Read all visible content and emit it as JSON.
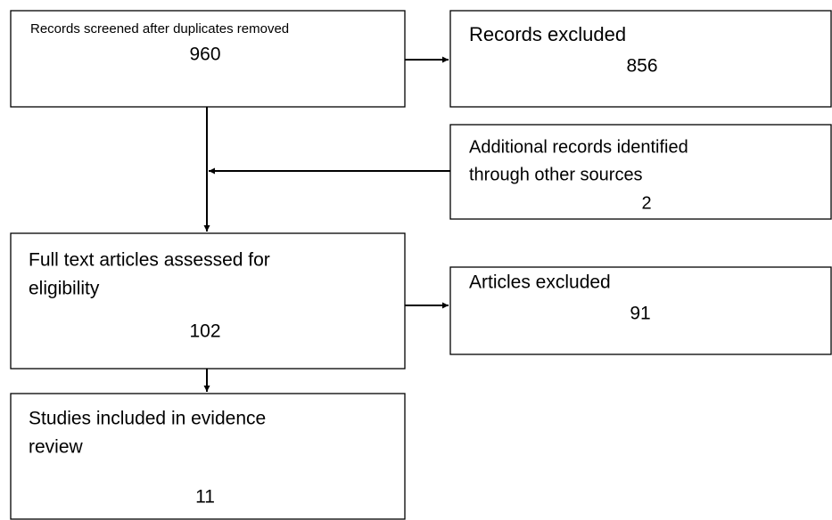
{
  "nodes": [
    {
      "label_lines": [
        "Records screened after duplicates removed"
      ],
      "count": 960
    },
    {
      "label_lines": [
        "Records excluded"
      ],
      "count": 856
    },
    {
      "label_lines": [
        "Additional records identified",
        "through other sources"
      ],
      "count": 2
    },
    {
      "label_lines": [
        "Full text articles assessed for",
        "eligibility"
      ],
      "count": 102
    },
    {
      "label_lines": [
        "Articles excluded"
      ],
      "count": 91
    },
    {
      "label_lines": [
        "Studies included in evidence",
        "review"
      ],
      "count": 11
    }
  ]
}
